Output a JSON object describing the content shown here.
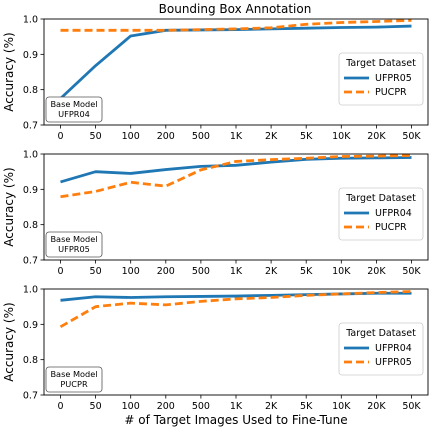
{
  "figure": {
    "title": "Bounding Box Annotation",
    "xlabel": "# of Target Images Used to Fine-Tune",
    "colors": {
      "blue": "#1f77b4",
      "orange": "#ff7f0e",
      "frame": "#000000",
      "legend_border": "#cccccc"
    }
  },
  "chart_data": [
    {
      "type": "line",
      "categories": [
        "0",
        "50",
        "100",
        "200",
        "500",
        "1K",
        "2K",
        "5K",
        "10K",
        "20K",
        "50K"
      ],
      "ylabel": "Accuracy (%)",
      "ylim": [
        0.7,
        1.0
      ],
      "yticks": [
        "0.7",
        "0.8",
        "0.9",
        "1.0"
      ],
      "legend_title": "Target Dataset",
      "legend_position": "right",
      "note_lines": [
        "Base Model",
        "UFPR04"
      ],
      "series": [
        {
          "name": "UFPR05",
          "style": "solid",
          "color": "#1f77b4",
          "values": [
            0.775,
            0.868,
            0.952,
            0.968,
            0.969,
            0.97,
            0.972,
            0.974,
            0.976,
            0.977,
            0.98
          ]
        },
        {
          "name": "PUCPR",
          "style": "dashed",
          "color": "#ff7f0e",
          "values": [
            0.968,
            0.968,
            0.968,
            0.968,
            0.97,
            0.972,
            0.975,
            0.985,
            0.99,
            0.993,
            0.996
          ]
        }
      ]
    },
    {
      "type": "line",
      "categories": [
        "0",
        "50",
        "100",
        "200",
        "500",
        "1K",
        "2K",
        "5K",
        "10K",
        "20K",
        "50K"
      ],
      "ylabel": "Accuracy (%)",
      "ylim": [
        0.7,
        1.0
      ],
      "yticks": [
        "0.7",
        "0.8",
        "0.9",
        "1.0"
      ],
      "legend_title": "Target Dataset",
      "legend_position": "right",
      "note_lines": [
        "Base Model",
        "UFPR05"
      ],
      "series": [
        {
          "name": "UFPR04",
          "style": "solid",
          "color": "#1f77b4",
          "values": [
            0.921,
            0.95,
            0.945,
            0.956,
            0.965,
            0.968,
            0.977,
            0.985,
            0.988,
            0.989,
            0.99
          ]
        },
        {
          "name": "PUCPR",
          "style": "dashed",
          "color": "#ff7f0e",
          "values": [
            0.879,
            0.894,
            0.92,
            0.909,
            0.955,
            0.979,
            0.984,
            0.988,
            0.993,
            0.994,
            0.996
          ]
        }
      ]
    },
    {
      "type": "line",
      "categories": [
        "0",
        "50",
        "100",
        "200",
        "500",
        "1K",
        "2K",
        "5K",
        "10K",
        "20K",
        "50K"
      ],
      "ylabel": "Accuracy (%)",
      "ylim": [
        0.7,
        1.0
      ],
      "yticks": [
        "0.7",
        "0.8",
        "0.9",
        "1.0"
      ],
      "legend_title": "Target Dataset",
      "legend_position": "right",
      "note_lines": [
        "Base Model",
        "PUCPR"
      ],
      "series": [
        {
          "name": "UFPR04",
          "style": "solid",
          "color": "#1f77b4",
          "values": [
            0.968,
            0.978,
            0.976,
            0.978,
            0.979,
            0.98,
            0.982,
            0.984,
            0.986,
            0.988,
            0.988
          ]
        },
        {
          "name": "UFPR05",
          "style": "dashed",
          "color": "#ff7f0e",
          "values": [
            0.893,
            0.95,
            0.96,
            0.955,
            0.965,
            0.972,
            0.976,
            0.982,
            0.986,
            0.99,
            0.993
          ]
        }
      ]
    }
  ]
}
